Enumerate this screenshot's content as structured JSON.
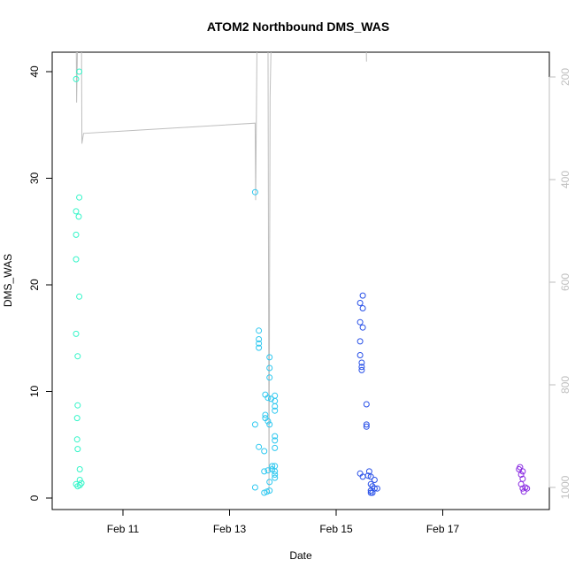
{
  "chart_data": {
    "type": "scatter",
    "title": "ATOM2 Northbound DMS_WAS",
    "xlabel": "Date",
    "ylabel": "DMS_WAS",
    "y_axis": {
      "range": [
        0,
        40
      ],
      "ticks": [
        0,
        10,
        20,
        30,
        40
      ]
    },
    "x_axis": {
      "range": [
        10.0,
        19.0
      ],
      "ticks": [
        {
          "value": 11,
          "label": "Feb 11"
        },
        {
          "value": 13,
          "label": "Feb 13"
        },
        {
          "value": 15,
          "label": "Feb 15"
        },
        {
          "value": 17,
          "label": "Feb 17"
        }
      ]
    },
    "secondary_y_axis": {
      "reversed": true,
      "ticks": [
        200,
        400,
        600,
        800,
        1000
      ],
      "color": "#bebebe"
    },
    "grid": false,
    "marker": "open-circle",
    "groups": [
      {
        "color": "#33f5c8",
        "points": [
          [
            10.12,
            39.3
          ],
          [
            10.18,
            40.0
          ],
          [
            10.12,
            26.9
          ],
          [
            10.17,
            26.4
          ],
          [
            10.18,
            28.2
          ],
          [
            10.12,
            24.7
          ],
          [
            10.12,
            22.4
          ],
          [
            10.18,
            18.9
          ],
          [
            10.12,
            15.4
          ],
          [
            10.15,
            13.3
          ],
          [
            10.15,
            8.7
          ],
          [
            10.14,
            7.5
          ],
          [
            10.14,
            5.5
          ],
          [
            10.15,
            4.6
          ],
          [
            10.19,
            2.7
          ],
          [
            10.19,
            1.7
          ],
          [
            10.22,
            1.4
          ],
          [
            10.12,
            1.3
          ],
          [
            10.15,
            1.1
          ],
          [
            10.19,
            1.2
          ]
        ]
      },
      {
        "color": "#2ec8f0",
        "points": [
          [
            13.48,
            28.7
          ],
          [
            13.55,
            15.7
          ],
          [
            13.55,
            14.9
          ],
          [
            13.55,
            14.5
          ],
          [
            13.55,
            14.1
          ],
          [
            13.75,
            13.2
          ],
          [
            13.75,
            12.2
          ],
          [
            13.75,
            11.3
          ],
          [
            13.67,
            9.7
          ],
          [
            13.78,
            9.3
          ],
          [
            13.72,
            9.4
          ],
          [
            13.85,
            9.6
          ],
          [
            13.85,
            9.1
          ],
          [
            13.85,
            8.6
          ],
          [
            13.85,
            8.2
          ],
          [
            13.67,
            7.8
          ],
          [
            13.67,
            7.5
          ],
          [
            13.72,
            7.2
          ],
          [
            13.75,
            6.9
          ],
          [
            13.48,
            6.9
          ],
          [
            13.85,
            5.8
          ],
          [
            13.85,
            5.4
          ],
          [
            13.55,
            4.8
          ],
          [
            13.85,
            4.7
          ],
          [
            13.65,
            4.4
          ],
          [
            13.85,
            3.0
          ],
          [
            13.8,
            3.0
          ],
          [
            13.8,
            2.7
          ],
          [
            13.85,
            2.5
          ],
          [
            13.85,
            2.2
          ],
          [
            13.65,
            2.5
          ],
          [
            13.72,
            2.6
          ],
          [
            13.85,
            1.9
          ],
          [
            13.75,
            1.5
          ],
          [
            13.48,
            1.0
          ],
          [
            13.75,
            0.7
          ],
          [
            13.7,
            0.6
          ],
          [
            13.65,
            0.5
          ]
        ]
      },
      {
        "color": "#2850e8",
        "points": [
          [
            15.5,
            19.0
          ],
          [
            15.45,
            18.3
          ],
          [
            15.5,
            17.8
          ],
          [
            15.45,
            16.5
          ],
          [
            15.5,
            16.0
          ],
          [
            15.45,
            14.7
          ],
          [
            15.45,
            13.4
          ],
          [
            15.48,
            12.7
          ],
          [
            15.48,
            12.3
          ],
          [
            15.48,
            12.0
          ],
          [
            15.57,
            8.8
          ],
          [
            15.57,
            6.9
          ],
          [
            15.57,
            6.7
          ],
          [
            15.45,
            2.3
          ],
          [
            15.5,
            2.0
          ],
          [
            15.62,
            2.5
          ],
          [
            15.6,
            2.1
          ],
          [
            15.65,
            2.0
          ],
          [
            15.72,
            1.7
          ],
          [
            15.65,
            1.3
          ],
          [
            15.68,
            1.1
          ],
          [
            15.72,
            0.9
          ],
          [
            15.77,
            0.9
          ],
          [
            15.65,
            0.7
          ],
          [
            15.68,
            0.5
          ],
          [
            15.65,
            0.5
          ]
        ]
      },
      {
        "color": "#8a2be2",
        "points": [
          [
            18.45,
            2.9
          ],
          [
            18.5,
            2.5
          ],
          [
            18.43,
            2.7
          ],
          [
            18.47,
            2.2
          ],
          [
            18.5,
            1.8
          ],
          [
            18.47,
            1.3
          ],
          [
            18.55,
            1.0
          ],
          [
            18.5,
            0.9
          ],
          [
            18.58,
            0.9
          ],
          [
            18.52,
            0.6
          ]
        ]
      }
    ],
    "depth_line": {
      "color": "#bebebe",
      "points": [
        [
          10.12,
          80
        ],
        [
          10.13,
          250
        ],
        [
          10.15,
          120
        ],
        [
          10.18,
          80
        ],
        [
          10.2,
          80
        ],
        [
          10.22,
          80
        ],
        [
          10.23,
          330
        ],
        [
          10.26,
          310
        ],
        [
          13.48,
          290
        ],
        [
          13.49,
          440
        ],
        [
          13.52,
          80
        ],
        [
          13.55,
          80
        ],
        [
          13.7,
          80
        ],
        [
          13.72,
          80
        ],
        [
          13.74,
          1010
        ],
        [
          13.76,
          240
        ],
        [
          13.79,
          80
        ],
        [
          15.56,
          80
        ],
        [
          15.57,
          170
        ]
      ]
    }
  }
}
